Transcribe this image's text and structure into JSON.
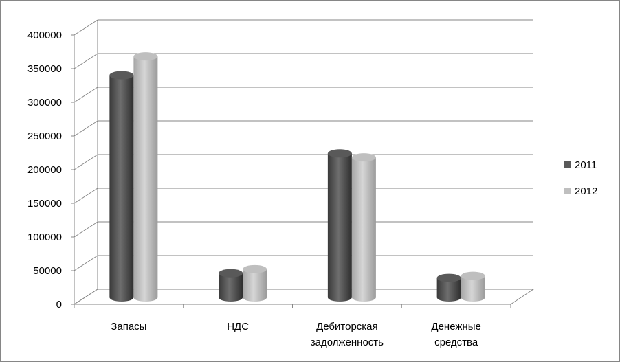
{
  "chart_data": {
    "type": "bar",
    "style": "3d-cylinder",
    "categories": [
      [
        "Запасы"
      ],
      [
        "НДС"
      ],
      [
        "Дебиторская",
        "задолженность"
      ],
      [
        "Денежные",
        "средства"
      ]
    ],
    "series": [
      {
        "name": "2011",
        "color": "#595959",
        "values": [
          330000,
          36000,
          214000,
          29000
        ]
      },
      {
        "name": "2012",
        "color": "#bfbfbf",
        "values": [
          358000,
          42000,
          208000,
          32000
        ]
      }
    ],
    "ylim": [
      0,
      400000
    ],
    "yticks": [
      0,
      50000,
      100000,
      150000,
      200000,
      250000,
      300000,
      350000,
      400000
    ],
    "grid": true,
    "legend_position": "right"
  }
}
